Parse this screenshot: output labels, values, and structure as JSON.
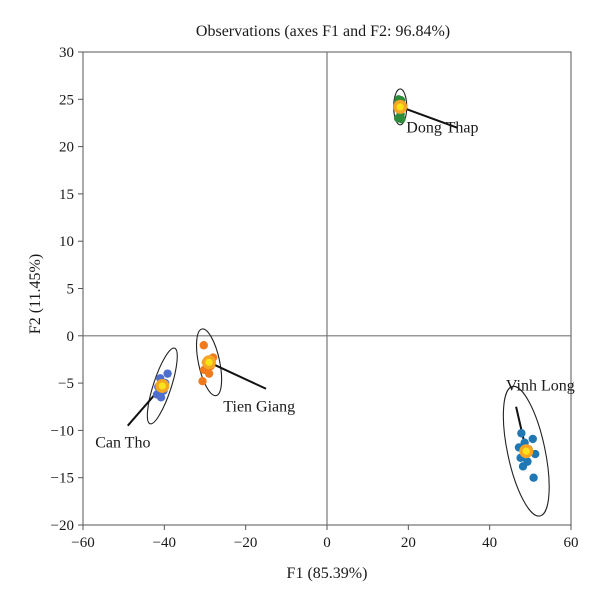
{
  "chart_data": {
    "type": "scatter",
    "title": "Observations (axes F1 and F2: 96.84%)",
    "xlabel": "F1 (85.39%)",
    "ylabel": "F2 (11.45%)",
    "xlim": [
      -60,
      60
    ],
    "ylim": [
      -20,
      30
    ],
    "x_ticks": [
      -60,
      -40,
      -20,
      0,
      20,
      40,
      60
    ],
    "y_ticks": [
      -20,
      -15,
      -10,
      -5,
      0,
      5,
      10,
      15,
      20,
      25,
      30
    ],
    "grid": false,
    "legend": "none",
    "groups": [
      {
        "label": "Dong Thap",
        "color": "#2e8b3a",
        "centroid": [
          18.0,
          24.2
        ],
        "ellipse": {
          "rx": 1.6,
          "ry": 1.9,
          "angle": 0
        },
        "points": [
          [
            17.6,
            25.0
          ],
          [
            18.2,
            24.9
          ],
          [
            17.4,
            24.4
          ],
          [
            18.5,
            24.3
          ],
          [
            17.8,
            23.9
          ],
          [
            18.1,
            23.4
          ],
          [
            17.5,
            23.0
          ],
          [
            18.3,
            22.9
          ]
        ],
        "label_pos": [
          19.5,
          21.5
        ],
        "leader_end": [
          32.0,
          22.0
        ]
      },
      {
        "label": "Tien Giang",
        "color": "#f07a1e",
        "centroid": [
          -29.0,
          -2.8
        ],
        "ellipse": {
          "rx": 2.6,
          "ry": 3.6,
          "angle": -12
        },
        "points": [
          [
            -30.3,
            -1.0
          ],
          [
            -28.0,
            -2.3
          ],
          [
            -29.8,
            -2.8
          ],
          [
            -28.6,
            -3.2
          ],
          [
            -30.2,
            -3.6
          ],
          [
            -29.0,
            -4.0
          ],
          [
            -30.6,
            -4.8
          ]
        ],
        "label_pos": [
          -25.5,
          -8.0
        ],
        "leader_end": [
          -15.0,
          -5.6
        ]
      },
      {
        "label": "Can Tho",
        "color": "#4f6fcf",
        "centroid": [
          -40.5,
          -5.3
        ],
        "ellipse": {
          "rx": 2.2,
          "ry": 4.2,
          "angle": 18
        },
        "points": [
          [
            -39.2,
            -4.0
          ],
          [
            -41.0,
            -4.5
          ],
          [
            -39.8,
            -5.0
          ],
          [
            -41.5,
            -5.4
          ],
          [
            -40.2,
            -5.8
          ],
          [
            -41.8,
            -6.2
          ],
          [
            -40.8,
            -6.5
          ]
        ],
        "label_pos": [
          -57.0,
          -11.8
        ],
        "leader_end": [
          -49.0,
          -9.5
        ]
      },
      {
        "label": "Vinh Long",
        "color": "#1f78b4",
        "centroid": [
          49.0,
          -12.2
        ],
        "ellipse": {
          "rx": 4.6,
          "ry": 7.0,
          "angle": -12
        },
        "points": [
          [
            47.8,
            -10.3
          ],
          [
            50.6,
            -10.9
          ],
          [
            47.2,
            -11.8
          ],
          [
            48.6,
            -11.3
          ],
          [
            49.6,
            -12.0
          ],
          [
            51.2,
            -12.5
          ],
          [
            47.6,
            -12.9
          ],
          [
            49.3,
            -13.3
          ],
          [
            48.2,
            -13.8
          ],
          [
            50.8,
            -15.0
          ]
        ],
        "label_pos": [
          44.0,
          -5.8
        ],
        "leader_end": [
          46.5,
          -7.5
        ]
      }
    ]
  }
}
